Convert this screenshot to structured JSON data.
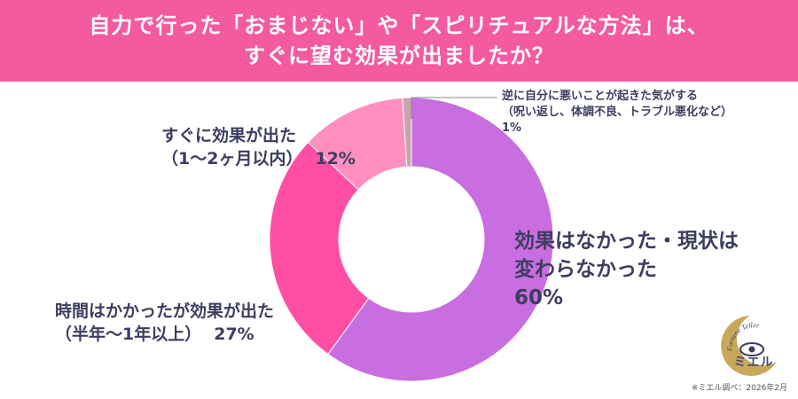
{
  "title": {
    "line1": "自力で行った「おまじない」や「スピリチュアルな方法」は、",
    "line2": "すぐに望む効果が出ましたか？"
  },
  "chart_data": {
    "type": "pie",
    "style": "donut",
    "slices": [
      {
        "label_lines": [
          "効果はなかった・現状は",
          "変わらなかった"
        ],
        "value": 60,
        "value_text": "60%",
        "color": "#c86ee0"
      },
      {
        "label_lines": [
          "時間はかかったが効果が出た",
          "（半年〜1年以上）"
        ],
        "value": 27,
        "value_text": "27%",
        "color": "#ff4ea3"
      },
      {
        "label_lines": [
          "すぐに効果が出た",
          "（1〜2ヶ月以内）"
        ],
        "value": 12,
        "value_text": "12%",
        "color": "#ff8fbf"
      },
      {
        "label_lines": [
          "逆に自分に悪いことが起きた気がする",
          "（呪い返し、体調不良、トラブル悪化など）"
        ],
        "value": 1,
        "value_text": "1%",
        "color": "#c9a3b0"
      }
    ]
  },
  "logo": {
    "arc_text": "Fortune Teller",
    "name": "ミエル",
    "colors": {
      "crescent": "#c8a95a",
      "eye": "#3d3d60"
    }
  },
  "source": "※ミエル調べ：2026年2月"
}
